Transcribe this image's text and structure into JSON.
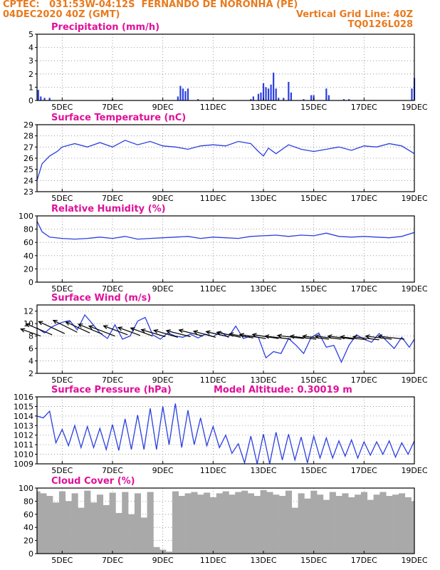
{
  "header": {
    "source": "CPTEC:",
    "coords": "031:53W-04:12S",
    "location": "FERNANDO DE NORONHA (PE)",
    "run": "04DEC2020 40Z (GMT)",
    "grid_note": "Vertical Grid Line: 40Z",
    "code": "TQ0126L028"
  },
  "colors": {
    "header": "#e87a1e",
    "panel_title": "#e0109a",
    "series": "#2b3fe0",
    "cloud": "#a9a9a9",
    "wind_arrow": "#000000"
  },
  "x_axis": {
    "range_days": [
      4.0,
      19.0
    ],
    "ticks": [
      {
        "day": 5,
        "label": "5DEC"
      },
      {
        "day": 7,
        "label": "7DEC"
      },
      {
        "day": 9,
        "label": "9DEC"
      },
      {
        "day": 11,
        "label": "11DEC"
      },
      {
        "day": 13,
        "label": "13DEC"
      },
      {
        "day": 15,
        "label": "15DEC"
      },
      {
        "day": 17,
        "label": "17DEC"
      },
      {
        "day": 19,
        "label": "19DEC"
      }
    ]
  },
  "chart_data": [
    {
      "id": "precip",
      "type": "bar",
      "title": "Precipitation (mm/h)",
      "ylim": [
        0,
        5
      ],
      "yticks": [
        0,
        1,
        2,
        3,
        4,
        5
      ],
      "grid": true,
      "x": [
        4.05,
        4.15,
        4.3,
        4.5,
        7.0,
        9.6,
        9.7,
        9.8,
        9.9,
        10.0,
        10.4,
        12.5,
        12.6,
        12.8,
        12.9,
        13.0,
        13.1,
        13.2,
        13.3,
        13.4,
        13.5,
        13.6,
        13.8,
        14.0,
        14.1,
        14.6,
        14.9,
        15.0,
        15.5,
        15.6,
        16.2,
        16.4,
        18.9,
        19.0
      ],
      "values": [
        0.8,
        0.3,
        0.2,
        0.2,
        0.1,
        0.3,
        1.1,
        0.9,
        0.7,
        0.9,
        0.1,
        0.1,
        0.3,
        0.5,
        0.6,
        1.3,
        1.0,
        0.9,
        1.2,
        2.1,
        0.9,
        0.2,
        0.2,
        1.4,
        0.6,
        0.1,
        0.4,
        0.4,
        0.9,
        0.4,
        0.1,
        0.1,
        0.9,
        1.7
      ]
    },
    {
      "id": "temp",
      "type": "line",
      "title": "Surface Temperature (nC)",
      "ylim": [
        23,
        29
      ],
      "yticks": [
        23,
        24,
        25,
        26,
        27,
        28,
        29
      ],
      "grid": true,
      "x": [
        4.0,
        4.2,
        4.5,
        4.8,
        5.0,
        5.5,
        6.0,
        6.5,
        7.0,
        7.5,
        8.0,
        8.5,
        9.0,
        9.5,
        10.0,
        10.5,
        11.0,
        11.5,
        12.0,
        12.5,
        12.8,
        13.0,
        13.2,
        13.5,
        14.0,
        14.5,
        15.0,
        15.5,
        16.0,
        16.5,
        17.0,
        17.5,
        18.0,
        18.5,
        19.0
      ],
      "values": [
        24.0,
        25.5,
        26.2,
        26.6,
        27.0,
        27.3,
        27.0,
        27.4,
        27.0,
        27.6,
        27.2,
        27.5,
        27.1,
        27.0,
        26.8,
        27.1,
        27.2,
        27.1,
        27.5,
        27.3,
        26.6,
        26.2,
        26.9,
        26.4,
        27.2,
        26.8,
        26.6,
        26.8,
        27.0,
        26.7,
        27.1,
        27.0,
        27.3,
        27.1,
        26.4
      ]
    },
    {
      "id": "rh",
      "type": "line",
      "title": "Relative Humidity (%)",
      "ylim": [
        0,
        100
      ],
      "yticks": [
        0,
        20,
        40,
        60,
        80,
        100
      ],
      "grid": true,
      "x": [
        4.0,
        4.2,
        4.5,
        5.0,
        5.5,
        6.0,
        6.5,
        7.0,
        7.5,
        8.0,
        8.5,
        9.0,
        9.5,
        10.0,
        10.5,
        11.0,
        11.5,
        12.0,
        12.5,
        13.0,
        13.5,
        14.0,
        14.5,
        15.0,
        15.5,
        16.0,
        16.5,
        17.0,
        17.5,
        18.0,
        18.5,
        19.0
      ],
      "values": [
        92,
        76,
        68,
        66,
        65,
        66,
        68,
        66,
        69,
        65,
        66,
        67,
        68,
        69,
        66,
        68,
        67,
        66,
        69,
        70,
        71,
        69,
        71,
        70,
        74,
        69,
        68,
        69,
        68,
        67,
        69,
        75
      ]
    },
    {
      "id": "wind",
      "type": "line",
      "title": "Surface Wind (m/s)",
      "ylim": [
        2,
        13
      ],
      "yticks": [
        2,
        4,
        6,
        8,
        10,
        12
      ],
      "grid": true,
      "x": [
        4.0,
        4.3,
        4.6,
        5.0,
        5.3,
        5.6,
        5.9,
        6.2,
        6.5,
        6.8,
        7.1,
        7.4,
        7.7,
        8.0,
        8.3,
        8.6,
        8.9,
        9.2,
        9.5,
        9.8,
        10.1,
        10.4,
        10.7,
        11.0,
        11.3,
        11.6,
        11.9,
        12.2,
        12.5,
        12.8,
        13.1,
        13.4,
        13.7,
        14.0,
        14.3,
        14.6,
        14.9,
        15.2,
        15.5,
        15.8,
        16.1,
        16.4,
        16.7,
        17.0,
        17.3,
        17.6,
        17.9,
        18.2,
        18.5,
        18.8,
        19.0
      ],
      "values": [
        9.3,
        8.5,
        9.5,
        10.2,
        10.5,
        9.0,
        11.4,
        10.0,
        8.5,
        7.6,
        9.8,
        7.5,
        8.0,
        10.4,
        11.0,
        8.2,
        7.5,
        8.5,
        8.0,
        7.8,
        8.3,
        7.7,
        8.3,
        7.9,
        8.7,
        7.8,
        9.6,
        7.6,
        8.0,
        7.8,
        4.5,
        5.5,
        5.2,
        7.6,
        6.5,
        5.2,
        7.8,
        8.5,
        6.2,
        6.5,
        3.8,
        6.5,
        8.2,
        7.5,
        7.0,
        8.4,
        7.2,
        6.0,
        7.8,
        6.2,
        7.5
      ],
      "arrows": {
        "day": [
          4.15,
          4.6,
          5.1,
          5.6,
          6.1,
          6.6,
          7.1,
          7.6,
          8.1,
          8.6,
          9.1,
          9.6,
          10.1,
          10.6,
          11.1,
          11.6,
          12.1,
          12.6,
          13.1,
          13.6,
          14.1,
          14.6,
          15.1,
          15.6,
          16.1,
          16.6,
          17.1,
          17.6,
          18.1,
          18.6
        ],
        "speed": [
          8.0,
          8.2,
          8.4,
          8.6,
          8.5,
          8.3,
          8.0,
          8.2,
          8.1,
          8.0,
          7.9,
          7.8,
          7.9,
          8.0,
          7.8,
          7.9,
          7.8,
          7.7,
          7.6,
          7.6,
          7.5,
          7.6,
          7.5,
          7.5,
          7.5,
          7.5,
          7.4,
          7.4,
          7.5,
          7.5
        ],
        "u": [
          -1.0,
          -1.3,
          -1.3,
          -1.2,
          -1.2,
          -1.2,
          -1.3,
          -1.2,
          -1.1,
          -1.1,
          -1.2,
          -1.2,
          -1.2,
          -1.2,
          -1.1,
          -1.1,
          -1.2,
          -1.2,
          -1.3,
          -1.3,
          -1.3,
          -1.3,
          -1.3,
          -1.3,
          -1.3,
          -1.3,
          -1.3,
          -1.3,
          -1.3,
          -1.3
        ],
        "v": [
          0.35,
          0.55,
          0.6,
          0.6,
          0.55,
          0.5,
          0.5,
          0.45,
          0.4,
          0.4,
          0.35,
          0.35,
          0.3,
          0.3,
          0.3,
          0.25,
          0.25,
          0.2,
          0.2,
          0.2,
          0.15,
          0.15,
          0.15,
          0.15,
          0.15,
          0.15,
          0.15,
          0.15,
          0.15,
          0.15
        ]
      }
    },
    {
      "id": "pressure",
      "type": "line",
      "title": "Surface Pressure (hPa)",
      "annotation": "Model Altitude: 0.30019 m",
      "ylim": [
        1009,
        1016
      ],
      "yticks": [
        1009,
        1010,
        1011,
        1012,
        1013,
        1014,
        1015,
        1016
      ],
      "grid": true,
      "x": [
        4.0,
        4.25,
        4.5,
        4.75,
        5.0,
        5.25,
        5.5,
        5.75,
        6.0,
        6.25,
        6.5,
        6.75,
        7.0,
        7.25,
        7.5,
        7.75,
        8.0,
        8.25,
        8.5,
        8.75,
        9.0,
        9.25,
        9.5,
        9.75,
        10.0,
        10.25,
        10.5,
        10.75,
        11.0,
        11.25,
        11.5,
        11.75,
        12.0,
        12.25,
        12.5,
        12.75,
        13.0,
        13.25,
        13.5,
        13.75,
        14.0,
        14.25,
        14.5,
        14.75,
        15.0,
        15.25,
        15.5,
        15.75,
        16.0,
        16.25,
        16.5,
        16.75,
        17.0,
        17.25,
        17.5,
        17.75,
        18.0,
        18.25,
        18.5,
        18.75,
        19.0
      ],
      "values": [
        1014.0,
        1013.8,
        1014.5,
        1011.2,
        1012.6,
        1010.9,
        1013.0,
        1010.7,
        1012.9,
        1010.7,
        1012.7,
        1010.5,
        1013.1,
        1010.4,
        1013.7,
        1010.5,
        1014.1,
        1010.5,
        1014.8,
        1010.5,
        1015.0,
        1011.0,
        1015.3,
        1010.7,
        1014.6,
        1011.0,
        1013.8,
        1010.9,
        1012.9,
        1010.7,
        1012.0,
        1010.1,
        1011.1,
        1009.1,
        1011.9,
        1009.0,
        1012.1,
        1009.0,
        1012.3,
        1009.4,
        1012.1,
        1009.4,
        1011.8,
        1009.1,
        1011.9,
        1009.6,
        1011.7,
        1009.6,
        1011.4,
        1009.8,
        1011.5,
        1009.6,
        1011.3,
        1009.9,
        1011.3,
        1010.0,
        1011.4,
        1009.7,
        1011.2,
        1010.0,
        1011.4
      ]
    },
    {
      "id": "cloud",
      "type": "bar",
      "title": "Cloud Cover (%)",
      "ylim": [
        0,
        100
      ],
      "yticks": [
        0,
        20,
        40,
        60,
        80,
        100
      ],
      "grid": true,
      "x": [
        4.0,
        4.25,
        4.5,
        4.75,
        5.0,
        5.25,
        5.5,
        5.75,
        6.0,
        6.25,
        6.5,
        6.75,
        7.0,
        7.25,
        7.5,
        7.75,
        8.0,
        8.25,
        8.5,
        8.75,
        9.0,
        9.25,
        9.5,
        9.75,
        10.0,
        10.25,
        10.5,
        10.75,
        11.0,
        11.25,
        11.5,
        11.75,
        12.0,
        12.25,
        12.5,
        12.75,
        13.0,
        13.25,
        13.5,
        13.75,
        14.0,
        14.25,
        14.5,
        14.75,
        15.0,
        15.25,
        15.5,
        15.75,
        16.0,
        16.25,
        16.5,
        16.75,
        17.0,
        17.25,
        17.5,
        17.75,
        18.0,
        18.25,
        18.5,
        18.75,
        19.0
      ],
      "values": [
        95,
        92,
        88,
        78,
        95,
        80,
        92,
        70,
        96,
        78,
        90,
        74,
        93,
        62,
        94,
        60,
        92,
        55,
        94,
        10,
        6,
        3,
        95,
        88,
        92,
        94,
        90,
        93,
        86,
        92,
        95,
        90,
        94,
        96,
        92,
        88,
        97,
        94,
        90,
        88,
        96,
        70,
        92,
        84,
        96,
        90,
        82,
        94,
        88,
        92,
        86,
        90,
        94,
        82,
        90,
        94,
        88,
        90,
        92,
        86,
        80
      ]
    }
  ]
}
